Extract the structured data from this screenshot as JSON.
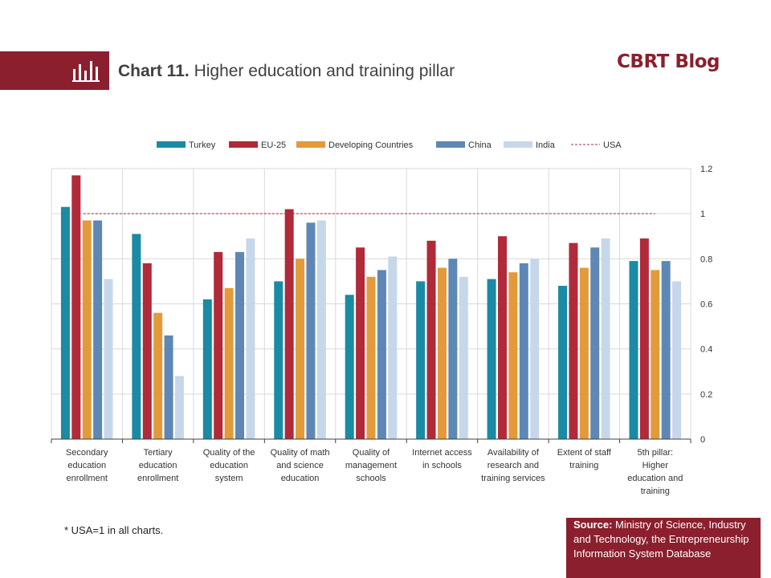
{
  "header": {
    "chart_number": "Chart 11.",
    "chart_title": "Higher education and training pillar",
    "brand": "CBRT Blog",
    "icon": "bar-chart-icon"
  },
  "footnote": "* USA=1 in all charts.",
  "source": {
    "label": "Source:",
    "text": "Ministry of Science, Industry and Technology, the Entrepreneurship Information System Database"
  },
  "chart_data": {
    "type": "bar",
    "title": "Higher education and training pillar",
    "categories": [
      [
        "Secondary",
        "education",
        "enrollment"
      ],
      [
        "Tertiary",
        "education",
        "enrollment"
      ],
      [
        "Quality of the",
        "education",
        "system"
      ],
      [
        "Quality of math",
        "and science",
        "education"
      ],
      [
        "Quality of",
        "management",
        "schools"
      ],
      [
        "Internet access",
        "in schools"
      ],
      [
        "Availability of",
        "research and",
        "training services"
      ],
      [
        "Extent of staff",
        "training"
      ],
      [
        "5th pillar:",
        "Higher",
        "education and",
        "training"
      ]
    ],
    "series": [
      {
        "name": "Turkey",
        "color": "#1a8aa5",
        "values": [
          1.03,
          0.91,
          0.62,
          0.7,
          0.64,
          0.7,
          0.71,
          0.68,
          0.79
        ]
      },
      {
        "name": "EU-25",
        "color": "#b02a3a",
        "values": [
          1.17,
          0.78,
          0.83,
          1.02,
          0.85,
          0.88,
          0.9,
          0.87,
          0.89
        ]
      },
      {
        "name": "Developing Countries",
        "color": "#e39a3a",
        "values": [
          0.97,
          0.56,
          0.67,
          0.8,
          0.72,
          0.76,
          0.74,
          0.76,
          0.75
        ]
      },
      {
        "name": "China",
        "color": "#5e87b5",
        "values": [
          0.97,
          0.46,
          0.83,
          0.96,
          0.75,
          0.8,
          0.78,
          0.85,
          0.79
        ]
      },
      {
        "name": "India",
        "color": "#c7d7ea",
        "values": [
          0.71,
          0.28,
          0.89,
          0.97,
          0.81,
          0.72,
          0.8,
          0.89,
          0.7
        ]
      }
    ],
    "reference_line": {
      "name": "USA",
      "value": 1,
      "color": "#b02a3a",
      "style": "dashed"
    },
    "ylim": [
      0,
      1.2
    ],
    "yticks": [
      "0",
      "0.2",
      "0.4",
      "0.6",
      "0.8",
      "1",
      "1.2"
    ],
    "ytick_values": [
      0,
      0.2,
      0.4,
      0.6,
      0.8,
      1,
      1.2
    ],
    "y_axis_side": "right",
    "legend_position": "top",
    "grid": true
  }
}
